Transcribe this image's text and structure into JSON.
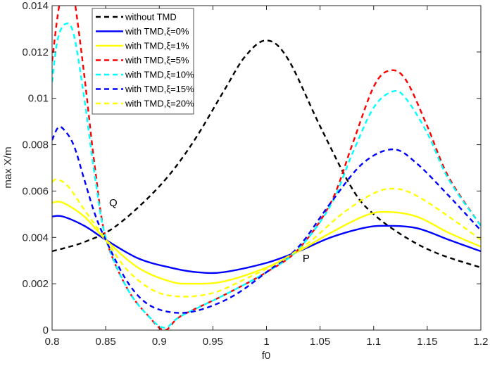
{
  "chart_data": {
    "type": "line",
    "title": "",
    "xlabel": "f0",
    "ylabel": "max X/m",
    "xlim": [
      0.8,
      1.2
    ],
    "ylim": [
      0,
      0.014
    ],
    "grid": false,
    "legend_position": "top-left",
    "xticks": [
      0.8,
      0.85,
      0.9,
      0.95,
      1,
      1.05,
      1.1,
      1.15,
      1.2
    ],
    "xtick_labels": [
      "0.8",
      "0.85",
      "0.9",
      "0.95",
      "1",
      "1.05",
      "1.1",
      "1.15",
      "1.2"
    ],
    "yticks": [
      0,
      0.002,
      0.004,
      0.006,
      0.008,
      0.01,
      0.012,
      0.014
    ],
    "ytick_labels": [
      "0",
      "0.002",
      "0.004",
      "0.006",
      "0.008",
      "0.01",
      "0.012",
      "0.014"
    ],
    "annotations": [
      {
        "text": "Q",
        "x": 0.857,
        "y": 0.0055
      },
      {
        "text": "P",
        "x": 1.037,
        "y": 0.0031
      }
    ],
    "series": [
      {
        "name": "without TMD",
        "color": "#000000",
        "style": "dashed",
        "x": [
          0.8,
          0.83,
          0.86,
          0.9,
          0.93,
          0.96,
          0.98,
          1.0,
          1.02,
          1.05,
          1.08,
          1.1,
          1.13,
          1.16,
          1.2
        ],
        "y": [
          0.0034,
          0.0038,
          0.0045,
          0.0062,
          0.008,
          0.0103,
          0.0118,
          0.0125,
          0.0117,
          0.0088,
          0.0061,
          0.005,
          0.004,
          0.0033,
          0.0027
        ]
      },
      {
        "name": "with TMD,ξ=0%",
        "color": "#0000ff",
        "style": "solid",
        "x": [
          0.8,
          0.81,
          0.83,
          0.85,
          0.88,
          0.91,
          0.935,
          0.96,
          1.0,
          1.03,
          1.06,
          1.09,
          1.11,
          1.14,
          1.17,
          1.2
        ],
        "y": [
          0.0049,
          0.0049,
          0.0045,
          0.0039,
          0.0031,
          0.0027,
          0.0025,
          0.0025,
          0.0029,
          0.0034,
          0.004,
          0.0044,
          0.0045,
          0.0044,
          0.0039,
          0.0034
        ]
      },
      {
        "name": "with TMD,ξ=1%",
        "color": "#ffff00",
        "style": "solid",
        "x": [
          0.8,
          0.81,
          0.83,
          0.85,
          0.88,
          0.91,
          0.93,
          0.96,
          1.0,
          1.03,
          1.06,
          1.09,
          1.11,
          1.14,
          1.17,
          1.2
        ],
        "y": [
          0.0055,
          0.0055,
          0.0049,
          0.0039,
          0.0027,
          0.0021,
          0.002,
          0.0021,
          0.0027,
          0.0034,
          0.0042,
          0.0049,
          0.0051,
          0.0049,
          0.0042,
          0.0036
        ]
      },
      {
        "name": "with TMD,ξ=5%",
        "color": "#ff0000",
        "style": "dashed",
        "x": [
          0.8,
          0.805,
          0.81,
          0.815,
          0.82,
          0.83,
          0.84,
          0.85,
          0.87,
          0.89,
          0.905,
          0.92,
          0.96,
          1.0,
          1.03,
          1.06,
          1.08,
          1.1,
          1.115,
          1.13,
          1.15,
          1.17,
          1.2
        ],
        "y": [
          0.0116,
          0.0135,
          0.0148,
          0.015,
          0.0145,
          0.011,
          0.007,
          0.004,
          0.0018,
          0.0006,
          0.0,
          0.0006,
          0.0015,
          0.0025,
          0.0035,
          0.0055,
          0.008,
          0.0105,
          0.0112,
          0.0108,
          0.0088,
          0.0066,
          0.0045
        ]
      },
      {
        "name": "with TMD,ξ=10%",
        "color": "#00ffff",
        "style": "dashed",
        "x": [
          0.8,
          0.805,
          0.812,
          0.82,
          0.83,
          0.84,
          0.85,
          0.87,
          0.89,
          0.905,
          0.92,
          0.96,
          1.0,
          1.03,
          1.06,
          1.08,
          1.1,
          1.118,
          1.13,
          1.15,
          1.17,
          1.2
        ],
        "y": [
          0.0107,
          0.0125,
          0.0132,
          0.0128,
          0.01,
          0.0066,
          0.004,
          0.0018,
          0.0006,
          0.0001,
          0.0006,
          0.0015,
          0.0025,
          0.0035,
          0.0054,
          0.0076,
          0.0096,
          0.0103,
          0.01,
          0.0085,
          0.0065,
          0.0045
        ]
      },
      {
        "name": "with TMD,ξ=15%",
        "color": "#0000ff",
        "style": "dashed",
        "x": [
          0.8,
          0.805,
          0.81,
          0.82,
          0.83,
          0.84,
          0.85,
          0.87,
          0.89,
          0.915,
          0.94,
          0.97,
          1.0,
          1.03,
          1.06,
          1.09,
          1.118,
          1.14,
          1.17,
          1.2
        ],
        "y": [
          0.0082,
          0.0087,
          0.0087,
          0.008,
          0.0065,
          0.005,
          0.0039,
          0.0021,
          0.0011,
          0.00075,
          0.0009,
          0.0015,
          0.0025,
          0.0036,
          0.0055,
          0.0072,
          0.0078,
          0.0072,
          0.0058,
          0.0043
        ]
      },
      {
        "name": "with TMD,ξ=20%",
        "color": "#ffff00",
        "style": "dashed",
        "x": [
          0.8,
          0.805,
          0.815,
          0.83,
          0.85,
          0.87,
          0.895,
          0.92,
          0.95,
          0.98,
          1.01,
          1.04,
          1.07,
          1.1,
          1.12,
          1.14,
          1.17,
          1.2
        ],
        "y": [
          0.0064,
          0.0065,
          0.0062,
          0.0052,
          0.0039,
          0.0026,
          0.0017,
          0.00145,
          0.0016,
          0.0022,
          0.0029,
          0.0038,
          0.005,
          0.0059,
          0.0061,
          0.0058,
          0.0049,
          0.0039
        ]
      }
    ]
  }
}
